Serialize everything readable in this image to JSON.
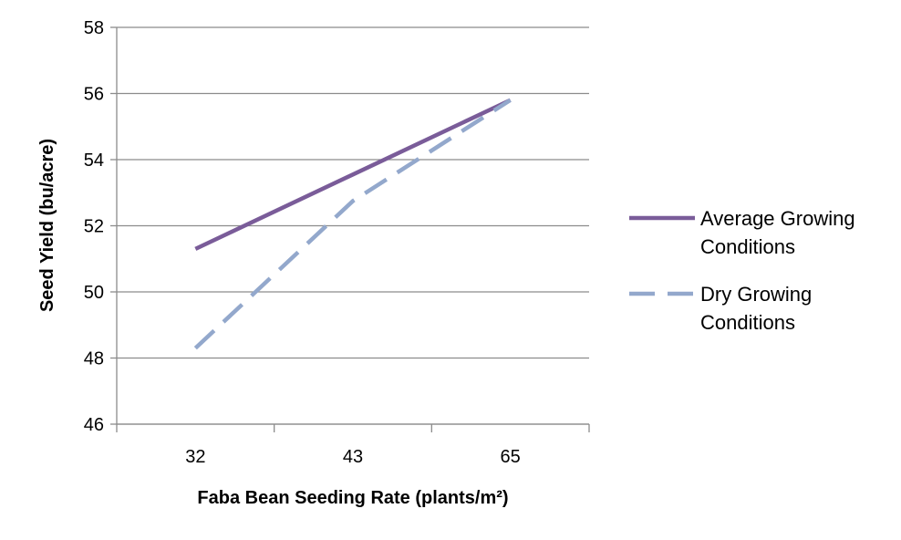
{
  "chart_data": {
    "type": "line",
    "categories": [
      "32",
      "43",
      "65"
    ],
    "series": [
      {
        "name": "Average Growing Conditions",
        "values": [
          51.3,
          53.55,
          55.8
        ],
        "color": "#7a5c99",
        "style": "solid"
      },
      {
        "name": "Dry Growing Conditions",
        "values": [
          48.3,
          52.75,
          55.8
        ],
        "color": "#93a8cc",
        "style": "dashed"
      }
    ],
    "xlabel": "Faba Bean Seeding Rate (plants/m²)",
    "ylabel": "Seed Yield (bu/acre)",
    "ylim": [
      46,
      58
    ],
    "yticks": [
      "46",
      "48",
      "50",
      "52",
      "54",
      "56",
      "58"
    ],
    "grid": true,
    "legend": "right"
  }
}
